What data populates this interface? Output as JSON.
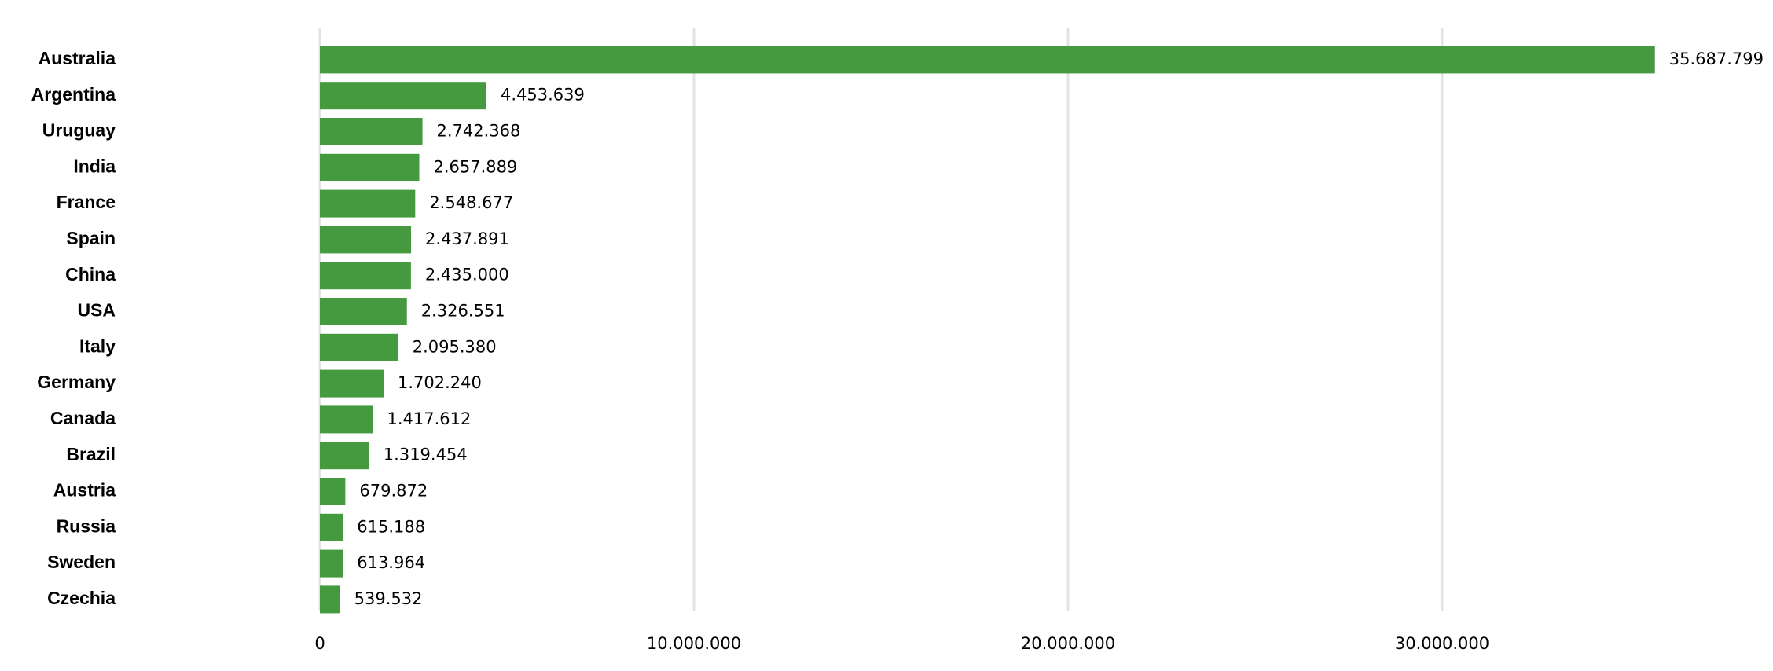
{
  "chart_data": {
    "type": "bar",
    "orientation": "horizontal",
    "categories": [
      "Australia",
      "Argentina",
      "Uruguay",
      "India",
      "France",
      "Spain",
      "China",
      "USA",
      "Italy",
      "Germany",
      "Canada",
      "Brazil",
      "Austria",
      "Russia",
      "Sweden",
      "Czechia"
    ],
    "values": [
      35687799,
      4453639,
      2742368,
      2657889,
      2548677,
      2437891,
      2435000,
      2326551,
      2095380,
      1702240,
      1417612,
      1319454,
      679872,
      615188,
      613964,
      539532
    ],
    "value_labels": [
      "35.687.799",
      "4.453.639",
      "2.742.368",
      "2.657.889",
      "2.548.677",
      "2.437.891",
      "2.435.000",
      "2.326.551",
      "2.095.380",
      "1.702.240",
      "1.417.612",
      "1.319.454",
      "679.872",
      "615.188",
      "613.964",
      "539.532"
    ],
    "xticks": [
      0,
      10000000,
      20000000,
      30000000
    ],
    "xtick_labels": [
      "0",
      "10.000.000",
      "20.000.000",
      "30.000.000"
    ],
    "xlim": [
      0,
      38000000
    ],
    "grid": "vertical",
    "bar_color": "#459a40",
    "grid_color": "#e3e3e3"
  }
}
